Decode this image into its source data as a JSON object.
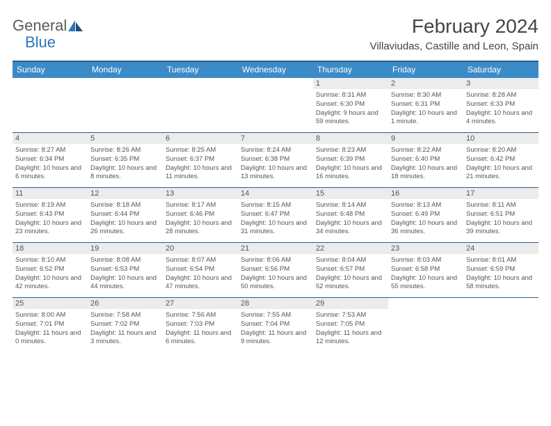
{
  "logo": {
    "text_gray": "General",
    "text_blue": "Blue"
  },
  "title": "February 2024",
  "location": "Villaviudas, Castille and Leon, Spain",
  "colors": {
    "header_bg": "#3b8bc8",
    "header_border": "#2e5c8a",
    "daynum_bg": "#ececec",
    "text_gray": "#555555",
    "logo_gray": "#5a5a5a",
    "logo_blue": "#2e75b6",
    "page_bg": "#ffffff"
  },
  "day_names": [
    "Sunday",
    "Monday",
    "Tuesday",
    "Wednesday",
    "Thursday",
    "Friday",
    "Saturday"
  ],
  "weeks": [
    [
      null,
      null,
      null,
      null,
      {
        "num": "1",
        "sunrise": "8:31 AM",
        "sunset": "6:30 PM",
        "daylight": "9 hours and 59 minutes."
      },
      {
        "num": "2",
        "sunrise": "8:30 AM",
        "sunset": "6:31 PM",
        "daylight": "10 hours and 1 minute."
      },
      {
        "num": "3",
        "sunrise": "8:28 AM",
        "sunset": "6:33 PM",
        "daylight": "10 hours and 4 minutes."
      }
    ],
    [
      {
        "num": "4",
        "sunrise": "8:27 AM",
        "sunset": "6:34 PM",
        "daylight": "10 hours and 6 minutes."
      },
      {
        "num": "5",
        "sunrise": "8:26 AM",
        "sunset": "6:35 PM",
        "daylight": "10 hours and 8 minutes."
      },
      {
        "num": "6",
        "sunrise": "8:25 AM",
        "sunset": "6:37 PM",
        "daylight": "10 hours and 11 minutes."
      },
      {
        "num": "7",
        "sunrise": "8:24 AM",
        "sunset": "6:38 PM",
        "daylight": "10 hours and 13 minutes."
      },
      {
        "num": "8",
        "sunrise": "8:23 AM",
        "sunset": "6:39 PM",
        "daylight": "10 hours and 16 minutes."
      },
      {
        "num": "9",
        "sunrise": "8:22 AM",
        "sunset": "6:40 PM",
        "daylight": "10 hours and 18 minutes."
      },
      {
        "num": "10",
        "sunrise": "8:20 AM",
        "sunset": "6:42 PM",
        "daylight": "10 hours and 21 minutes."
      }
    ],
    [
      {
        "num": "11",
        "sunrise": "8:19 AM",
        "sunset": "6:43 PM",
        "daylight": "10 hours and 23 minutes."
      },
      {
        "num": "12",
        "sunrise": "8:18 AM",
        "sunset": "6:44 PM",
        "daylight": "10 hours and 26 minutes."
      },
      {
        "num": "13",
        "sunrise": "8:17 AM",
        "sunset": "6:46 PM",
        "daylight": "10 hours and 28 minutes."
      },
      {
        "num": "14",
        "sunrise": "8:15 AM",
        "sunset": "6:47 PM",
        "daylight": "10 hours and 31 minutes."
      },
      {
        "num": "15",
        "sunrise": "8:14 AM",
        "sunset": "6:48 PM",
        "daylight": "10 hours and 34 minutes."
      },
      {
        "num": "16",
        "sunrise": "8:13 AM",
        "sunset": "6:49 PM",
        "daylight": "10 hours and 36 minutes."
      },
      {
        "num": "17",
        "sunrise": "8:11 AM",
        "sunset": "6:51 PM",
        "daylight": "10 hours and 39 minutes."
      }
    ],
    [
      {
        "num": "18",
        "sunrise": "8:10 AM",
        "sunset": "6:52 PM",
        "daylight": "10 hours and 42 minutes."
      },
      {
        "num": "19",
        "sunrise": "8:08 AM",
        "sunset": "6:53 PM",
        "daylight": "10 hours and 44 minutes."
      },
      {
        "num": "20",
        "sunrise": "8:07 AM",
        "sunset": "6:54 PM",
        "daylight": "10 hours and 47 minutes."
      },
      {
        "num": "21",
        "sunrise": "8:06 AM",
        "sunset": "6:56 PM",
        "daylight": "10 hours and 50 minutes."
      },
      {
        "num": "22",
        "sunrise": "8:04 AM",
        "sunset": "6:57 PM",
        "daylight": "10 hours and 52 minutes."
      },
      {
        "num": "23",
        "sunrise": "8:03 AM",
        "sunset": "6:58 PM",
        "daylight": "10 hours and 55 minutes."
      },
      {
        "num": "24",
        "sunrise": "8:01 AM",
        "sunset": "6:59 PM",
        "daylight": "10 hours and 58 minutes."
      }
    ],
    [
      {
        "num": "25",
        "sunrise": "8:00 AM",
        "sunset": "7:01 PM",
        "daylight": "11 hours and 0 minutes."
      },
      {
        "num": "26",
        "sunrise": "7:58 AM",
        "sunset": "7:02 PM",
        "daylight": "11 hours and 3 minutes."
      },
      {
        "num": "27",
        "sunrise": "7:56 AM",
        "sunset": "7:03 PM",
        "daylight": "11 hours and 6 minutes."
      },
      {
        "num": "28",
        "sunrise": "7:55 AM",
        "sunset": "7:04 PM",
        "daylight": "11 hours and 9 minutes."
      },
      {
        "num": "29",
        "sunrise": "7:53 AM",
        "sunset": "7:05 PM",
        "daylight": "11 hours and 12 minutes."
      },
      null,
      null
    ]
  ],
  "labels": {
    "sunrise": "Sunrise: ",
    "sunset": "Sunset: ",
    "daylight": "Daylight: "
  }
}
